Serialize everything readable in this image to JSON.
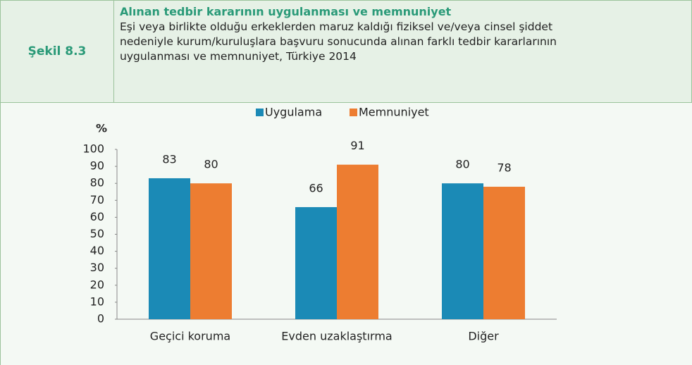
{
  "figure_label": "Şekil 8.3",
  "chart_data": {
    "type": "bar",
    "title": "Alınan tedbir kararının uygulanması ve memnuniyet",
    "subtitle": "Eşi veya birlikte olduğu erkeklerden maruz kaldığı fiziksel ve/veya cinsel şiddet nedeniyle kurum/kuruluşlara başvuru sonucunda alınan farklı tedbir kararlarının uygulanması ve memnuniyet, Türkiye 2014",
    "y_label": "%",
    "categories": [
      "Geçici koruma",
      "Evden uzaklaştırma",
      "Diğer"
    ],
    "series": [
      {
        "name": "Uygulama",
        "color": "#1b8ab6",
        "values": [
          83,
          66,
          80
        ]
      },
      {
        "name": "Memnuniyet",
        "color": "#ed7d31",
        "values": [
          80,
          91,
          78
        ]
      }
    ],
    "ylim": [
      0,
      100
    ],
    "yticks": [
      0,
      10,
      20,
      30,
      40,
      50,
      60,
      70,
      80,
      90,
      100
    ],
    "legend": "top",
    "grid": false
  }
}
